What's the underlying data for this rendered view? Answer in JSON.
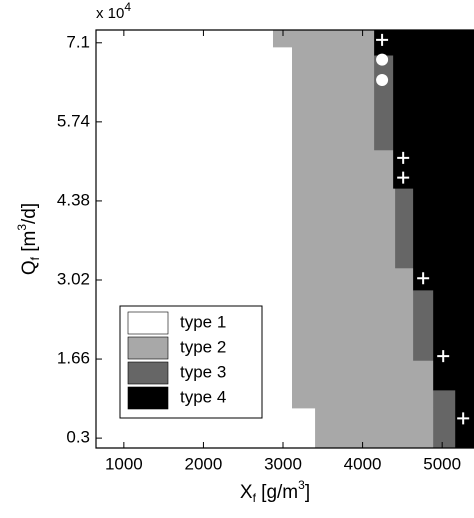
{
  "chart_data": {
    "type": "region",
    "x_label": [
      "X",
      "f",
      " [g/m",
      "3",
      "]"
    ],
    "y_label": [
      "Q",
      "f",
      " [m",
      "3",
      "/d]"
    ],
    "y_multiplier": [
      "x 10",
      "4"
    ],
    "xlim": [
      650,
      5400
    ],
    "ylim": [
      0.13,
      7.32
    ],
    "xticks": [
      1000,
      2000,
      3000,
      4000,
      5000
    ],
    "yticks": [
      0.3,
      1.66,
      3.02,
      4.38,
      5.74,
      7.1
    ],
    "legend": "lower left",
    "series": [
      {
        "name": "type 1",
        "color": "#ffffff",
        "rects": [
          [
            650,
            2874,
            7.03,
            7.32
          ],
          [
            650,
            3113,
            0.82,
            7.03
          ],
          [
            650,
            3403,
            0.13,
            0.82
          ]
        ]
      },
      {
        "name": "type 2",
        "color": "#a8a8a8",
        "rects": [
          [
            2874,
            4145,
            7.03,
            7.32
          ],
          [
            3113,
            4145,
            5.26,
            7.03
          ],
          [
            3113,
            4384,
            4.6,
            5.26
          ],
          [
            3113,
            4409,
            3.23,
            4.6
          ],
          [
            3113,
            4635,
            1.64,
            3.23
          ],
          [
            3113,
            4887,
            0.82,
            1.64
          ],
          [
            3403,
            4887,
            0.13,
            0.82
          ]
        ]
      },
      {
        "name": "type 3",
        "color": "#666666",
        "rects": [
          [
            4145,
            4384,
            5.26,
            6.89
          ],
          [
            4409,
            4635,
            3.23,
            4.6
          ],
          [
            4635,
            4887,
            1.64,
            2.85
          ],
          [
            4887,
            5164,
            0.13,
            1.13
          ]
        ]
      },
      {
        "name": "type 4",
        "color": "#000000",
        "rects": [
          [
            4145,
            5400,
            6.89,
            7.32
          ],
          [
            4384,
            5400,
            4.6,
            6.89
          ],
          [
            4635,
            5400,
            2.85,
            4.6
          ],
          [
            4887,
            5400,
            1.13,
            2.85
          ],
          [
            5164,
            5400,
            0.13,
            1.13
          ]
        ]
      }
    ],
    "markers": [
      {
        "symbol": "plus",
        "color": "#ffffff",
        "x": [
          4245,
          4510,
          4510,
          4761,
          5013,
          5264
        ],
        "y": [
          7.15,
          5.12,
          4.78,
          3.05,
          1.71,
          0.64
        ]
      },
      {
        "symbol": "circle",
        "color": "#ffffff",
        "x": [
          4245,
          4245
        ],
        "y": [
          6.81,
          6.46
        ]
      }
    ]
  }
}
